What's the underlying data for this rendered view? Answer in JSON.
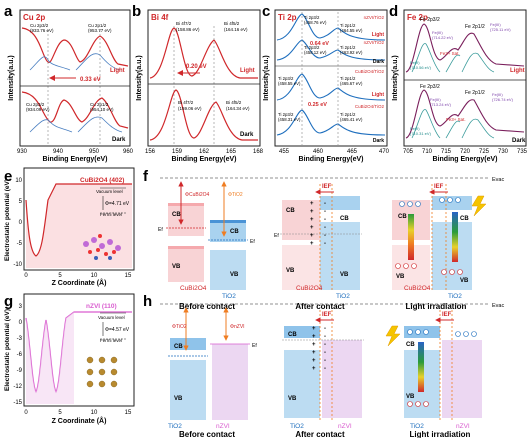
{
  "panel_letters": [
    "a",
    "b",
    "c",
    "d",
    "e",
    "f",
    "g",
    "h"
  ],
  "axis": {
    "intensity": "Intensity(a.u.)",
    "binding_energy": "Binding Energy(eV)",
    "electrostatic_potential": "Electrostatic potential (eV)",
    "z_coordinate": "Z Coordinate (Å)"
  },
  "condition_labels": {
    "light": "Light",
    "dark": "Dark"
  },
  "panel_a": {
    "element": "Cu 2p",
    "ticks": [
      "930",
      "940",
      "950",
      "960"
    ],
    "light_peaks": [
      {
        "line1": "Cu 2p3/2",
        "line2": "(933.76 eV)"
      },
      {
        "line1": "Cu 2p1/2",
        "line2": "(953.77 eV)"
      }
    ],
    "dark_peaks": [
      {
        "line1": "Cu 2p3/2",
        "line2": "(934.09 eV)"
      },
      {
        "line1": "Cu 2p1/2",
        "line2": "(954.10 eV)"
      }
    ],
    "shift": "0.33 eV"
  },
  "panel_b": {
    "element": "Bi 4f",
    "ticks": [
      "156",
      "159",
      "162",
      "165",
      "168"
    ],
    "light_peaks": [
      {
        "line1": "Bi 4f7/2",
        "line2": "(158.86 eV)"
      },
      {
        "line1": "Bi 4f5/2",
        "line2": "(164.16 eV)"
      }
    ],
    "dark_peaks": [
      {
        "line1": "Bi 4f7/2",
        "line2": "(159.06 eV)"
      },
      {
        "line1": "Bi 4f5/2",
        "line2": "(164.34 eV)"
      }
    ],
    "shift": "0.20 eV"
  },
  "panel_c": {
    "element": "Ti 2p",
    "ticks": [
      "455",
      "460",
      "465",
      "470"
    ],
    "rows": [
      {
        "sample": "nZVI/TiO2",
        "cond": "Light",
        "p1a": "Ti 2p3/2",
        "p1b": "(458.76 eV)",
        "p2a": "Ti 2p1/2",
        "p2b": "(464.55 eV)"
      },
      {
        "sample": "nZVI/TiO2",
        "cond": "Dark",
        "p1a": "Ti 2p3/2",
        "p1b": "(458.12 eV)",
        "p2a": "Ti 2p1/2",
        "p2b": "(463.92 eV)"
      },
      {
        "sample": "CuBi2O4/TiO2",
        "cond": "Light",
        "p1a": "Ti 2p3/2",
        "p1b": "(458.55 eV)",
        "p2a": "Ti 2p1/2",
        "p2b": "(465.67 eV)"
      },
      {
        "sample": "CuBi2O4/TiO2",
        "cond": "Dark",
        "p1a": "Ti 2p3/2",
        "p1b": "(458.31 eV)",
        "p2a": "Ti 2p1/2",
        "p2b": "(465.41 eV)"
      }
    ],
    "shift1": "0.64 eV",
    "shift2": "0.25 eV"
  },
  "panel_d": {
    "element": "Fe 2p",
    "ticks": [
      "705",
      "710",
      "715",
      "720",
      "725",
      "730",
      "735"
    ],
    "light": {
      "fe2p32": "Fe 2p3/2",
      "fe2p12": "Fe 2p1/2",
      "feiii1": "Fe(III)",
      "feiii1v": "(714.22 eV)",
      "feii1": "Fe(II)",
      "feii1v": "(710.56 eV)",
      "feiii2": "Fe(III)",
      "feiii2v": "(725.11 eV)",
      "sat": "Fe3+ Sat."
    },
    "dark": {
      "fe2p32": "Fe 2p3/2",
      "fe2p12": "Fe 2p1/2",
      "feiii1": "Fe(III)",
      "feiii1v": "(713.24 eV)",
      "feii1": "Fe(II)",
      "feii1v": "(710.31 eV)",
      "feiii2": "Fe(III)",
      "feiii2v": "(726.74 eV)",
      "sat": "Fe3+ Sat."
    }
  },
  "panel_e": {
    "material": "CuBi2O4 (402)",
    "vacuum": "Vacuum level",
    "phi": "Φ=4.71 eV",
    "fermi": "Fermi level",
    "yticks": [
      "-10",
      "-5",
      "0",
      "5",
      "10"
    ],
    "xticks": [
      "0",
      "5",
      "10",
      "15"
    ]
  },
  "panel_g": {
    "material": "nZVI (110)",
    "vacuum": "Vacuum level",
    "phi": "Φ=4.57 eV",
    "fermi": "Fermi level",
    "yticks": [
      "-15",
      "-12",
      "-9",
      "-6",
      "-3",
      "0",
      "3"
    ],
    "xticks": [
      "0",
      "5",
      "10",
      "15"
    ]
  },
  "panel_f": {
    "evac": "Evac",
    "ef": "Ef",
    "phi_left": "ΦCuBi2O4",
    "phi_right": "ΦTiO2",
    "cb": "CB",
    "vb": "VB",
    "mat_left": "CuBi2O4",
    "mat_right": "TiO2",
    "ief": "IEF",
    "captions": [
      "Before contact",
      "After contact",
      "Light irradiation"
    ]
  },
  "panel_h": {
    "evac": "Evac",
    "ef": "Ef",
    "phi_left": "ΦTiO2",
    "phi_right": "ΦnZVI",
    "cb": "CB",
    "vb": "VB",
    "mat_left": "TiO2",
    "mat_right": "nZVI",
    "ief": "IEF",
    "captions": [
      "Before contact",
      "After contact",
      "Light irradiation"
    ]
  },
  "colors": {
    "red": "#d0282b",
    "blue": "#1f6fbe",
    "pink_fill": "#f5c9cc",
    "blue_fill": "#bcdcf2",
    "purple_fill": "#e6cfee",
    "orange": "#ef7d22",
    "magenta": "#d95ccf"
  }
}
